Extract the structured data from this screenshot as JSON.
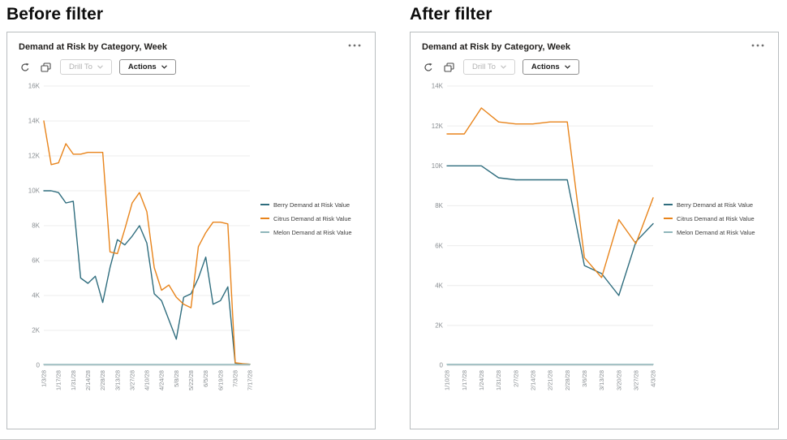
{
  "page": {
    "headings": {
      "before": "Before filter",
      "after": "After filter"
    }
  },
  "panels": [
    {
      "title": "Demand at Risk by Category, Week",
      "menu_icon": "ellipsis-icon",
      "toolbar": {
        "refresh_icon": "refresh-icon",
        "show_data_icon": "show-data-icon",
        "drill_to_label": "Drill To",
        "actions_label": "Actions"
      }
    },
    {
      "title": "Demand at Risk by Category, Week",
      "menu_icon": "ellipsis-icon",
      "toolbar": {
        "refresh_icon": "refresh-icon",
        "show_data_icon": "show-data-icon",
        "drill_to_label": "Drill To",
        "actions_label": "Actions"
      }
    }
  ],
  "chart_data": [
    {
      "type": "line",
      "title": "Demand at Risk by Category, Week",
      "x": [
        "1/3/28",
        "1/10/28",
        "1/17/28",
        "1/24/28",
        "1/31/28",
        "2/7/28",
        "2/14/28",
        "2/21/28",
        "2/28/28",
        "3/6/28",
        "3/13/28",
        "3/20/28",
        "3/27/28",
        "4/3/28",
        "4/10/28",
        "4/17/28",
        "4/24/28",
        "5/1/28",
        "5/8/28",
        "5/15/28",
        "5/22/28",
        "5/29/28",
        "6/5/28",
        "6/12/28",
        "6/19/28",
        "6/26/28",
        "7/3/28",
        "7/10/28",
        "7/17/28"
      ],
      "tick_every": 2,
      "ylim": [
        0,
        16000
      ],
      "ytick_step": 2000,
      "ytick_labels": [
        "0",
        "2K",
        "4K",
        "6K",
        "8K",
        "10K",
        "12K",
        "14K",
        "16K"
      ],
      "grid": true,
      "legend_position": "right",
      "series": [
        {
          "name": "Berry Demand at Risk Value",
          "color": "#2f6d7e",
          "values": [
            10000,
            10000,
            9900,
            9300,
            9400,
            5000,
            4700,
            5100,
            3600,
            5600,
            7200,
            6900,
            7400,
            8000,
            7000,
            4100,
            3700,
            2600,
            1500,
            3900,
            4100,
            5000,
            6200,
            3500,
            3700,
            4500,
            120,
            80,
            60
          ]
        },
        {
          "name": "Citrus Demand at Risk Value",
          "color": "#e8841b",
          "values": [
            14000,
            11500,
            11600,
            12700,
            12100,
            12100,
            12200,
            12200,
            12200,
            6500,
            6400,
            7800,
            9300,
            9900,
            8800,
            5600,
            4300,
            4600,
            3900,
            3500,
            3300,
            6800,
            7600,
            8200,
            8200,
            8100,
            150,
            100,
            60
          ]
        },
        {
          "name": "Melon Demand at Risk Value",
          "color": "#8fb6ba",
          "values": [
            50,
            50,
            50,
            50,
            50,
            50,
            50,
            50,
            50,
            50,
            50,
            50,
            50,
            50,
            50,
            50,
            50,
            50,
            50,
            50,
            50,
            50,
            50,
            50,
            50,
            50,
            50,
            50,
            50
          ]
        }
      ]
    },
    {
      "type": "line",
      "title": "Demand at Risk by Category, Week",
      "x": [
        "1/10/28",
        "1/17/28",
        "1/24/28",
        "1/31/28",
        "2/7/28",
        "2/14/28",
        "2/21/28",
        "2/28/28",
        "3/6/28",
        "3/13/28",
        "3/20/28",
        "3/27/28",
        "4/3/28"
      ],
      "tick_every": 1,
      "ylim": [
        0,
        14000
      ],
      "ytick_step": 2000,
      "ytick_labels": [
        "0",
        "2K",
        "4K",
        "6K",
        "8K",
        "10K",
        "12K",
        "14K"
      ],
      "grid": true,
      "legend_position": "right",
      "series": [
        {
          "name": "Berry Demand at Risk Value",
          "color": "#2f6d7e",
          "values": [
            10000,
            10000,
            10000,
            9400,
            9300,
            9300,
            9300,
            9300,
            5000,
            4600,
            3500,
            6200,
            7100
          ]
        },
        {
          "name": "Citrus Demand at Risk Value",
          "color": "#e8841b",
          "values": [
            11600,
            11600,
            12900,
            12200,
            12100,
            12100,
            12200,
            12200,
            5400,
            4400,
            7300,
            6100,
            8400
          ]
        },
        {
          "name": "Melon Demand at Risk Value",
          "color": "#8fb6ba",
          "values": [
            50,
            50,
            50,
            50,
            50,
            50,
            50,
            50,
            50,
            50,
            50,
            50,
            50
          ]
        }
      ]
    }
  ]
}
